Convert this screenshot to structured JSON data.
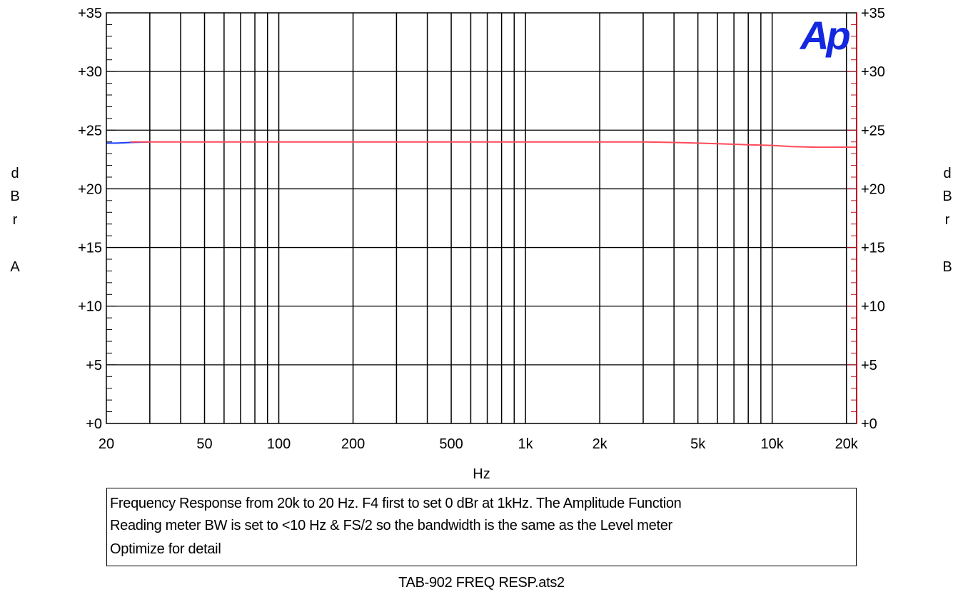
{
  "chart_data": {
    "type": "line",
    "x_scale": "log",
    "xlim": [
      20,
      22000
    ],
    "ylim": [
      0,
      35
    ],
    "grid": true,
    "xlabel": "Hz",
    "ylabel_left": [
      "d",
      "B",
      "r",
      "",
      "A"
    ],
    "ylabel_right": [
      "d",
      "B",
      "r",
      "",
      "B"
    ],
    "x_ticks": [
      {
        "value": 20,
        "label": "20"
      },
      {
        "value": 50,
        "label": "50"
      },
      {
        "value": 100,
        "label": "100"
      },
      {
        "value": 200,
        "label": "200"
      },
      {
        "value": 500,
        "label": "500"
      },
      {
        "value": 1000,
        "label": "1k"
      },
      {
        "value": 2000,
        "label": "2k"
      },
      {
        "value": 5000,
        "label": "5k"
      },
      {
        "value": 10000,
        "label": "10k"
      },
      {
        "value": 20000,
        "label": "20k"
      }
    ],
    "y_ticks": [
      {
        "value": 0,
        "label": "+0"
      },
      {
        "value": 5,
        "label": "+5"
      },
      {
        "value": 10,
        "label": "+10"
      },
      {
        "value": 15,
        "label": "+15"
      },
      {
        "value": 20,
        "label": "+20"
      },
      {
        "value": 25,
        "label": "+25"
      },
      {
        "value": 30,
        "label": "+30"
      },
      {
        "value": 35,
        "label": "+35"
      }
    ],
    "series": [
      {
        "color": "#1a3cff",
        "x": [
          20,
          22,
          25,
          30
        ],
        "y": [
          23.9,
          23.9,
          23.95,
          24.0
        ]
      },
      {
        "color": "#ff4a5a",
        "x": [
          25,
          50,
          100,
          200,
          500,
          1000,
          2000,
          3000,
          4000,
          5000,
          6000,
          7000,
          8000,
          10000,
          12000,
          15000,
          20000,
          22000
        ],
        "y": [
          24.0,
          24.0,
          24.0,
          24.0,
          24.0,
          24.0,
          24.0,
          24.0,
          23.95,
          23.9,
          23.85,
          23.8,
          23.75,
          23.7,
          23.6,
          23.55,
          23.55,
          23.55
        ]
      }
    ]
  },
  "logo": {
    "text": "Ap",
    "color": "#1428e0"
  },
  "colors": {
    "grid": "#000000",
    "right_axis": "#c0101e"
  },
  "notes": [
    "Frequency Response from 20k to 20 Hz.  F4 first to set 0 dBr at 1kHz.  The Amplitude Function",
    "Reading meter BW is set to <10 Hz & FS/2 so the bandwidth is the same as the Level meter",
    "Optimize for detail"
  ],
  "filename": "TAB-902 FREQ RESP.ats2"
}
